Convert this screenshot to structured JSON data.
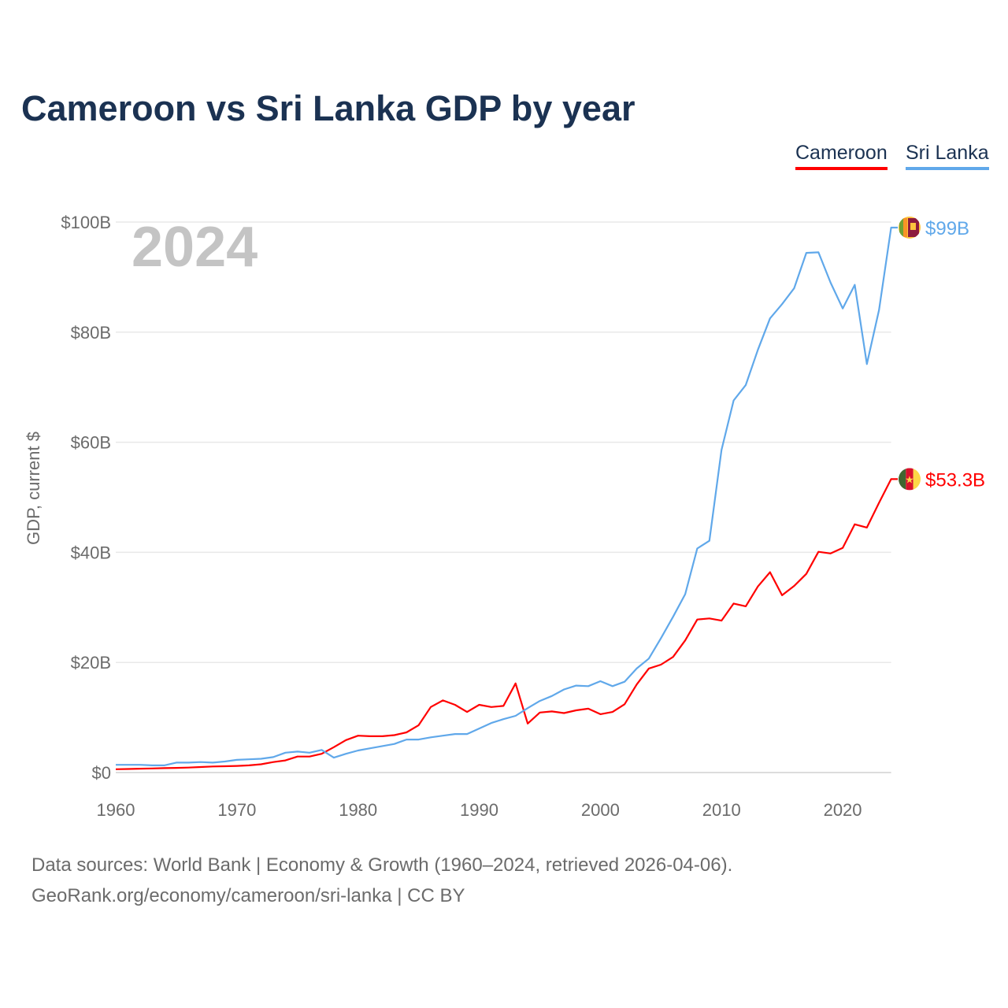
{
  "chart_data": {
    "type": "line",
    "title": "Cameroon vs Sri Lanka GDP by year",
    "xlabel": "",
    "ylabel": "GDP, current $",
    "xlim": [
      1960,
      2024
    ],
    "ylim": [
      0,
      100
    ],
    "grid": true,
    "legend_placement": "top-right",
    "year_watermark": "2024",
    "x_ticks": [
      "1960",
      "1970",
      "1980",
      "1990",
      "2000",
      "2010",
      "2020"
    ],
    "y_ticks": [
      {
        "value": 0,
        "label": "$0"
      },
      {
        "value": 20,
        "label": "$20B"
      },
      {
        "value": 40,
        "label": "$40B"
      },
      {
        "value": 60,
        "label": "$60B"
      },
      {
        "value": 80,
        "label": "$80B"
      },
      {
        "value": 100,
        "label": "$100B"
      }
    ],
    "x": [
      1960,
      1961,
      1962,
      1963,
      1964,
      1965,
      1966,
      1967,
      1968,
      1969,
      1970,
      1971,
      1972,
      1973,
      1974,
      1975,
      1976,
      1977,
      1978,
      1979,
      1980,
      1981,
      1982,
      1983,
      1984,
      1985,
      1986,
      1987,
      1988,
      1989,
      1990,
      1991,
      1992,
      1993,
      1994,
      1995,
      1996,
      1997,
      1998,
      1999,
      2000,
      2001,
      2002,
      2003,
      2004,
      2005,
      2006,
      2007,
      2008,
      2009,
      2010,
      2011,
      2012,
      2013,
      2014,
      2015,
      2016,
      2017,
      2018,
      2019,
      2020,
      2021,
      2022,
      2023,
      2024
    ],
    "series": [
      {
        "name": "Cameroon",
        "color": "#ff0000",
        "end_label": "$53.3B",
        "values": [
          0.6,
          0.65,
          0.7,
          0.75,
          0.8,
          0.85,
          0.9,
          1.0,
          1.1,
          1.15,
          1.2,
          1.3,
          1.5,
          1.9,
          2.2,
          2.9,
          2.9,
          3.4,
          4.6,
          5.9,
          6.7,
          6.6,
          6.6,
          6.8,
          7.3,
          8.6,
          11.9,
          13.1,
          12.3,
          11.0,
          12.3,
          11.9,
          12.1,
          16.2,
          8.9,
          10.9,
          11.1,
          10.8,
          11.3,
          11.6,
          10.6,
          11.0,
          12.4,
          16.0,
          18.9,
          19.6,
          21.0,
          24.0,
          27.8,
          28.0,
          27.6,
          30.7,
          30.2,
          33.8,
          36.4,
          32.2,
          33.9,
          36.1,
          40.1,
          39.8,
          40.8,
          45.1,
          44.5,
          49.0,
          53.3
        ]
      },
      {
        "name": "Sri Lanka",
        "color": "#60a8ea",
        "end_label": "$99B",
        "values": [
          1.4,
          1.4,
          1.4,
          1.3,
          1.3,
          1.8,
          1.8,
          1.9,
          1.8,
          2.0,
          2.3,
          2.4,
          2.5,
          2.8,
          3.6,
          3.8,
          3.6,
          4.1,
          2.7,
          3.4,
          4.0,
          4.4,
          4.8,
          5.2,
          6.0,
          6.0,
          6.4,
          6.7,
          7.0,
          7.0,
          8.0,
          9.0,
          9.7,
          10.3,
          11.7,
          13.0,
          13.9,
          15.1,
          15.8,
          15.7,
          16.6,
          15.7,
          16.5,
          18.9,
          20.7,
          24.4,
          28.3,
          32.4,
          40.7,
          42.1,
          58.6,
          67.6,
          70.4,
          76.8,
          82.5,
          85.1,
          88.0,
          94.4,
          94.5,
          89.0,
          84.3,
          88.6,
          74.2,
          84.0,
          99.0
        ]
      }
    ]
  },
  "footer": {
    "line1": "Data sources: World Bank | Economy & Growth (1960–2024, retrieved 2026-04-06).",
    "line2": "GeoRank.org/economy/cameroon/sri-lanka | CC BY"
  }
}
